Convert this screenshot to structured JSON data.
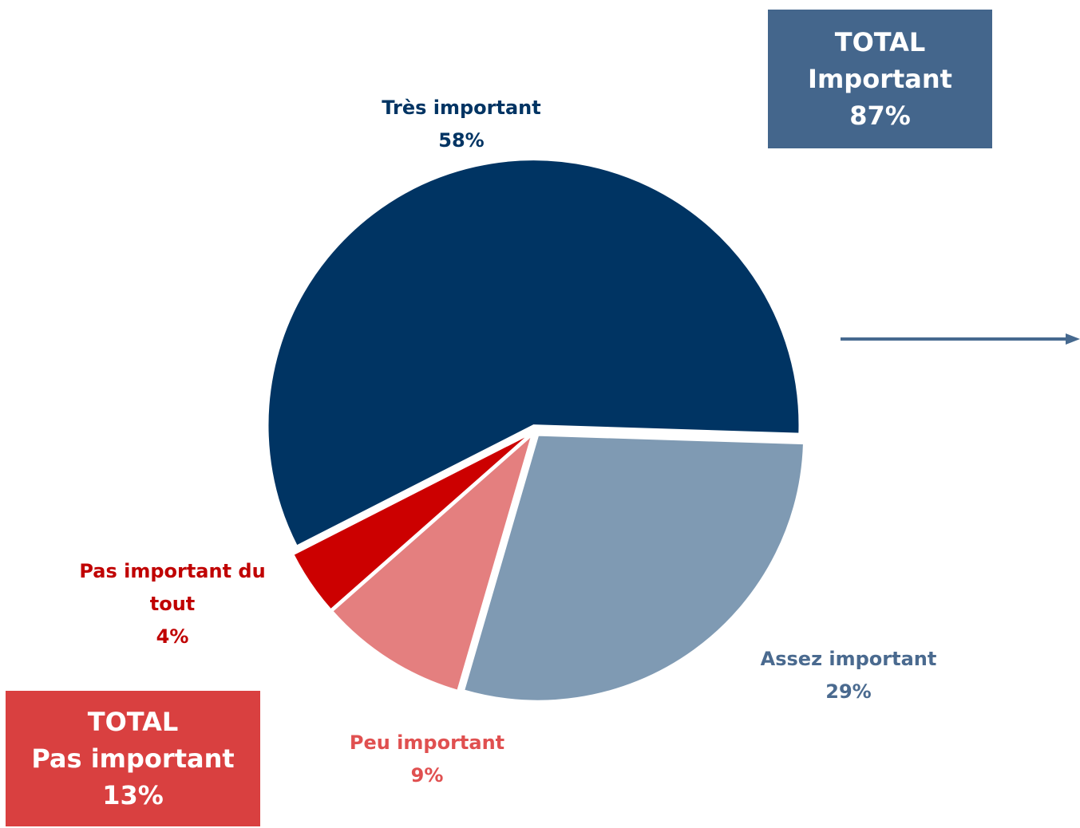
{
  "chart_data": {
    "type": "pie",
    "categories": [
      "Très important",
      "Assez important",
      "Peu important",
      "Pas important du tout"
    ],
    "values": [
      58,
      29,
      9,
      4
    ],
    "value_labels": [
      "58%",
      "29%",
      "9%",
      "4%"
    ],
    "colors": [
      "#003463",
      "#7f9ab3",
      "#e47f7f",
      "#cc0000"
    ],
    "label_colors": [
      "#003463",
      "#4a6a8f",
      "#e05050",
      "#c00000"
    ],
    "totals": [
      {
        "title": "TOTAL",
        "name": "Important",
        "value": 87,
        "value_label": "87%",
        "color": "#44668c"
      },
      {
        "title": "TOTAL",
        "name": "Pas important",
        "value": 13,
        "value_label": "13%",
        "color": "#d94040"
      }
    ]
  }
}
